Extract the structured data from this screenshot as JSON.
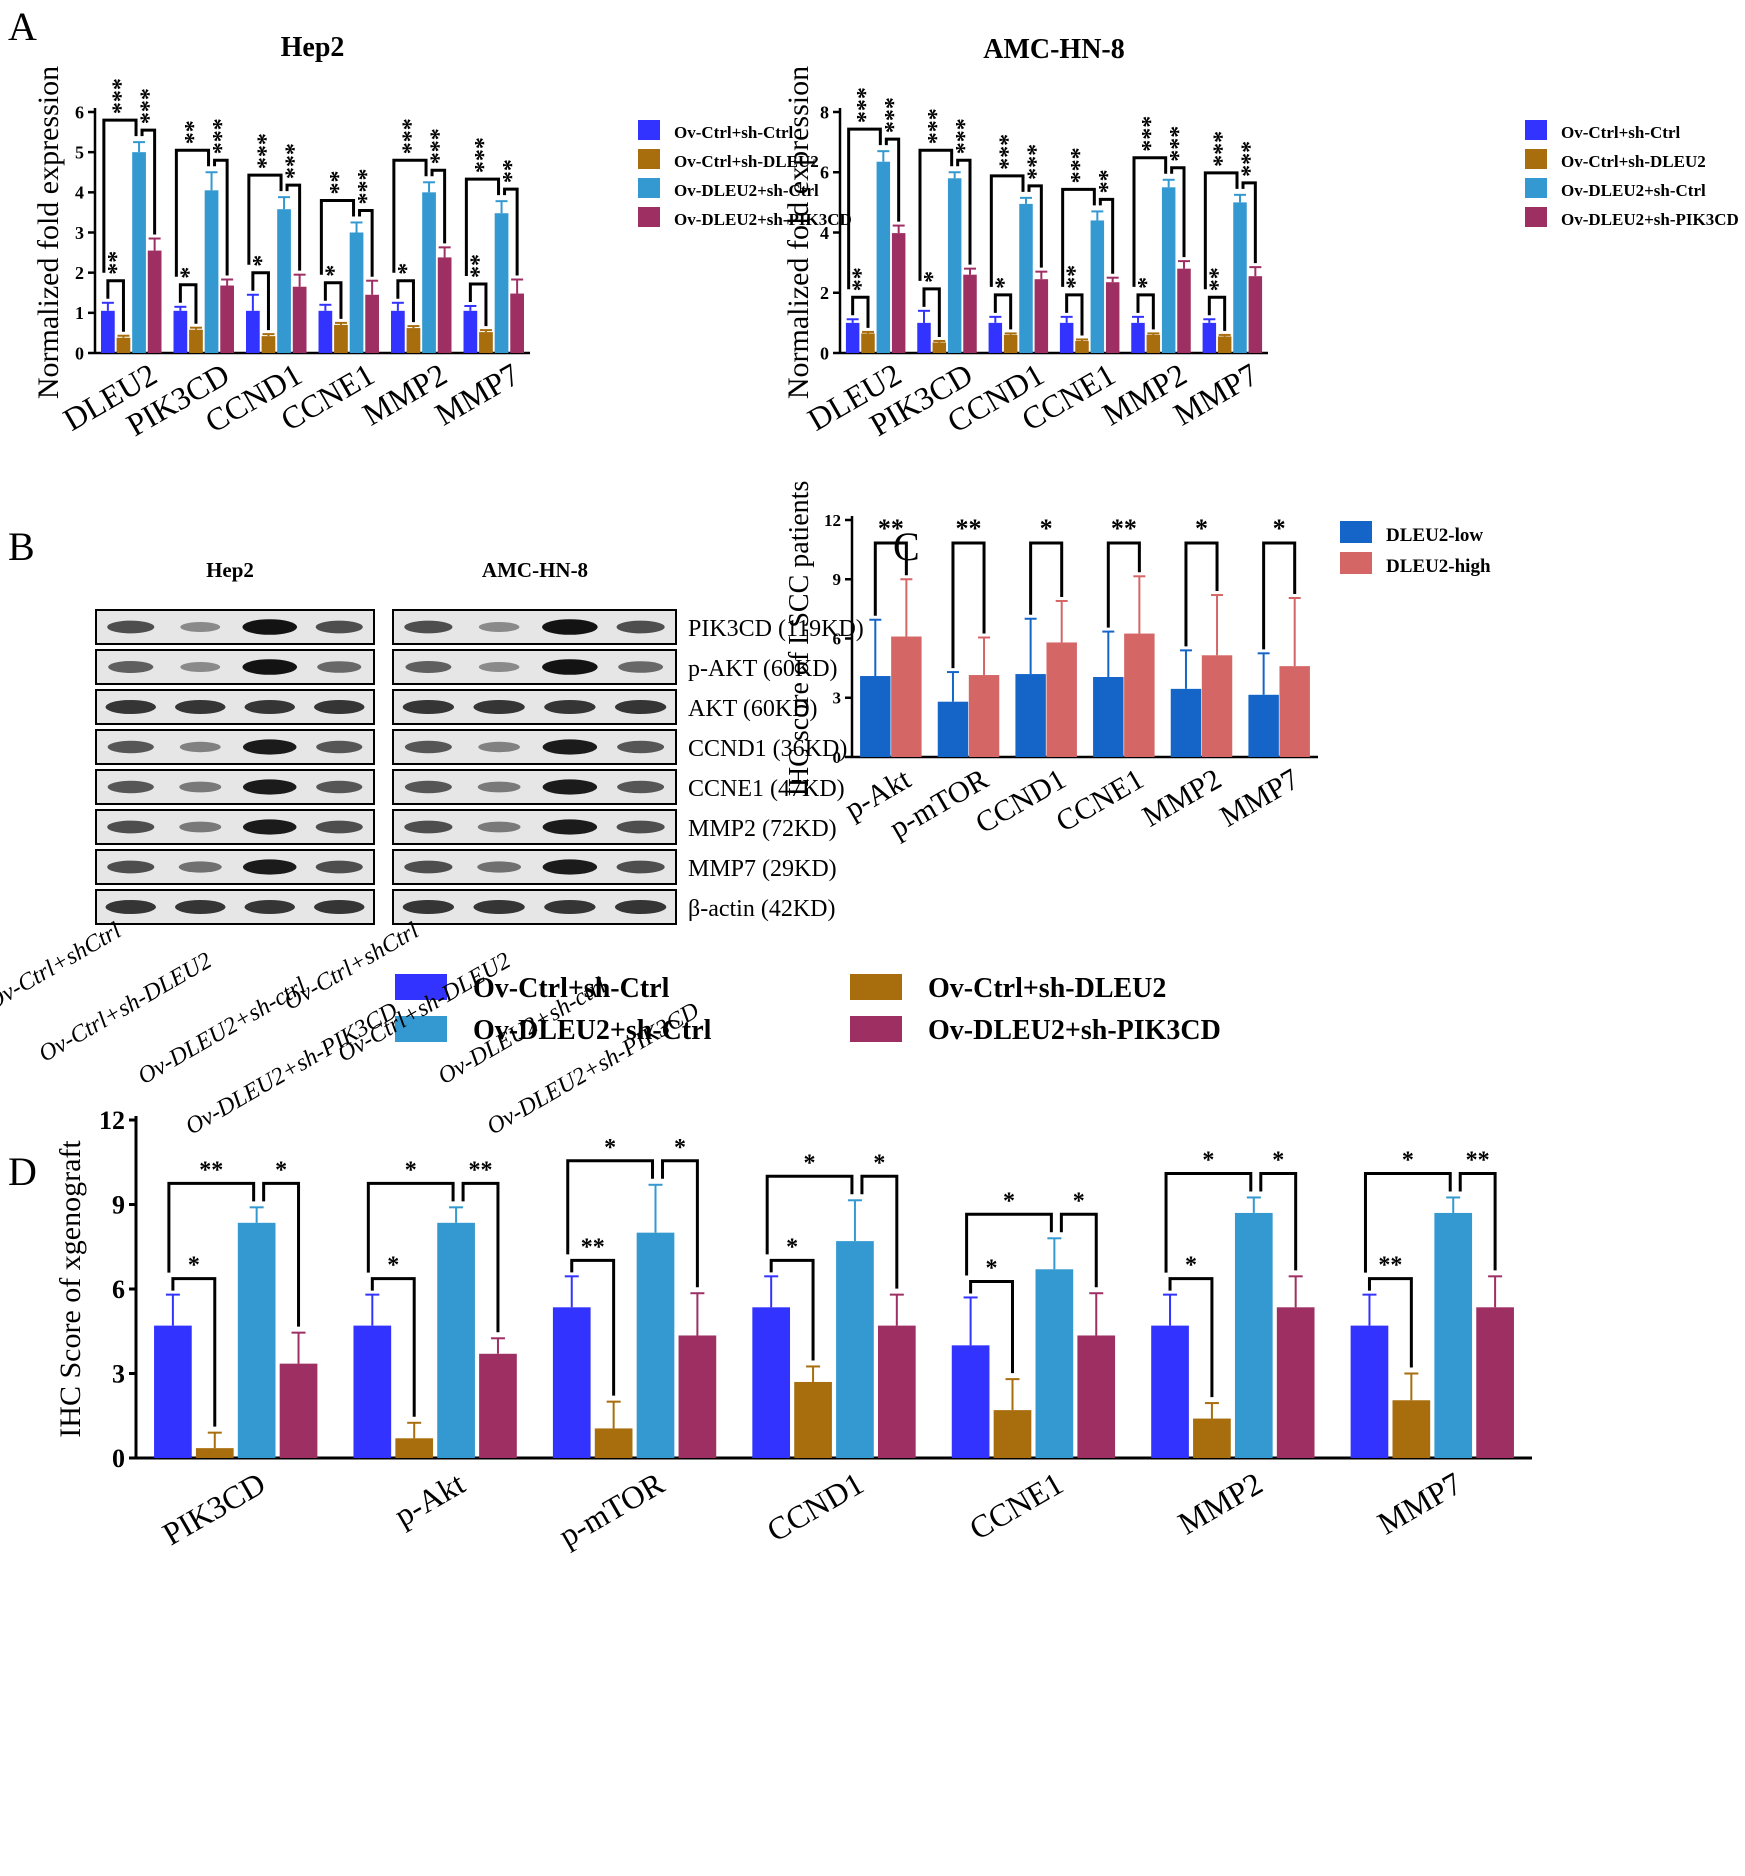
{
  "panel_labels": [
    "A",
    "B",
    "C",
    "D"
  ],
  "colors": {
    "ctrl": "#3333ff",
    "dleu2sh": "#a86d0d",
    "dleu2ov": "#3399d0",
    "pik3cd": "#9e2f63",
    "low": "#1565c8",
    "high": "#d46666",
    "axis": "#000000"
  },
  "chart_data": [
    {
      "id": "A1",
      "type": "bar",
      "title": "Hep2",
      "ylabel": "Normalized fold expression",
      "xlabel": "",
      "ylim": [
        0,
        6
      ],
      "yticks": [
        "0",
        "1",
        "2",
        "3",
        "4",
        "5",
        "6"
      ],
      "categories": [
        "DLEU2",
        "PIK3CD",
        "CCND1",
        "CCNE1",
        "MMP2",
        "MMP7"
      ],
      "legend": "right",
      "series": [
        {
          "name": "Ov-Ctrl+sh-Ctrl",
          "color": "#3333ff",
          "values": [
            1.05,
            1.05,
            1.05,
            1.05,
            1.05,
            1.05
          ],
          "errors": [
            0.2,
            0.1,
            0.4,
            0.15,
            0.2,
            0.12
          ]
        },
        {
          "name": "Ov-Ctrl+sh-DLEU2",
          "color": "#a86d0d",
          "values": [
            0.38,
            0.58,
            0.42,
            0.7,
            0.62,
            0.52
          ],
          "errors": [
            0.05,
            0.05,
            0.05,
            0.05,
            0.05,
            0.05
          ]
        },
        {
          "name": "Ov-DLEU2+sh-Ctrl",
          "color": "#3399d0",
          "values": [
            5.0,
            4.05,
            3.58,
            3.0,
            4.0,
            3.48
          ],
          "errors": [
            0.25,
            0.45,
            0.3,
            0.25,
            0.25,
            0.3
          ]
        },
        {
          "name": "Ov-DLEU2+sh-PIK3CD",
          "color": "#9e2f63",
          "values": [
            2.55,
            1.68,
            1.65,
            1.45,
            2.38,
            1.48
          ],
          "errors": [
            0.3,
            0.15,
            0.3,
            0.35,
            0.25,
            0.35
          ]
        }
      ],
      "brackets": [
        {
          "lo": [
            "**",
            "*",
            "*",
            "*",
            "*",
            "**"
          ],
          "mid": [
            "***",
            "**",
            "***",
            "**",
            "***",
            "***"
          ],
          "right": [
            "***",
            "***",
            "***",
            "***",
            "***",
            "**"
          ]
        }
      ]
    },
    {
      "id": "A2",
      "type": "bar",
      "title": "AMC-HN-8",
      "ylabel": "Normalized fold expression",
      "xlabel": "",
      "ylim": [
        0,
        8
      ],
      "yticks": [
        "0",
        "2",
        "4",
        "6",
        "8"
      ],
      "categories": [
        "DLEU2",
        "PIK3CD",
        "CCND1",
        "CCNE1",
        "MMP2",
        "MMP7"
      ],
      "legend": "right",
      "series": [
        {
          "name": "Ov-Ctrl+sh-Ctrl",
          "color": "#3333ff",
          "values": [
            1.0,
            1.0,
            1.0,
            1.0,
            1.0,
            1.0
          ],
          "errors": [
            0.12,
            0.4,
            0.2,
            0.2,
            0.2,
            0.12
          ]
        },
        {
          "name": "Ov-Ctrl+sh-DLEU2",
          "color": "#a86d0d",
          "values": [
            0.65,
            0.35,
            0.6,
            0.4,
            0.6,
            0.55
          ],
          "errors": [
            0.05,
            0.05,
            0.05,
            0.05,
            0.05,
            0.05
          ]
        },
        {
          "name": "Ov-DLEU2+sh-Ctrl",
          "color": "#3399d0",
          "values": [
            6.35,
            5.8,
            4.95,
            4.4,
            5.5,
            5.0
          ],
          "errors": [
            0.35,
            0.2,
            0.2,
            0.3,
            0.25,
            0.25
          ]
        },
        {
          "name": "Ov-DLEU2+sh-PIK3CD",
          "color": "#9e2f63",
          "values": [
            3.98,
            2.6,
            2.45,
            2.35,
            2.8,
            2.55
          ],
          "errors": [
            0.25,
            0.2,
            0.25,
            0.15,
            0.25,
            0.3
          ]
        }
      ],
      "brackets": [
        {
          "lo": [
            "**",
            "*",
            "*",
            "**",
            "*",
            "**"
          ],
          "mid": [
            "***",
            "***",
            "***",
            "***",
            "***",
            "***"
          ],
          "right": [
            "***",
            "***",
            "***",
            "**",
            "***",
            "***"
          ]
        }
      ]
    },
    {
      "id": "C",
      "type": "bar",
      "title": "",
      "ylabel": "IHC score of LSCC patients",
      "xlabel": "",
      "ylim": [
        0,
        12
      ],
      "yticks": [
        "0",
        "3",
        "6",
        "9",
        "12"
      ],
      "categories": [
        "p-Akt",
        "p-mTOR",
        "CCND1",
        "CCNE1",
        "MMP2",
        "MMP7"
      ],
      "legend": "top-right",
      "series": [
        {
          "name": "DLEU2-low",
          "color": "#1565c8",
          "values": [
            4.1,
            2.8,
            4.2,
            4.05,
            3.45,
            3.15
          ],
          "errors": [
            2.85,
            1.5,
            2.8,
            2.3,
            1.95,
            2.1
          ]
        },
        {
          "name": "DLEU2-high",
          "color": "#d46666",
          "values": [
            6.1,
            4.15,
            5.8,
            6.25,
            5.15,
            4.6
          ],
          "errors": [
            2.9,
            1.9,
            2.1,
            2.9,
            3.05,
            3.45
          ]
        }
      ],
      "sig": [
        "**",
        "**",
        "*",
        "**",
        "*",
        "*"
      ]
    },
    {
      "id": "D",
      "type": "bar",
      "title": "",
      "ylabel": "IHC Score of xgenograft",
      "xlabel": "",
      "ylim": [
        0,
        12
      ],
      "yticks": [
        "0",
        "3",
        "6",
        "9",
        "12"
      ],
      "categories": [
        "PIK3CD",
        "p-Akt",
        "p-mTOR",
        "CCND1",
        "CCNE1",
        "MMP2",
        "MMP7"
      ],
      "legend": "top",
      "series": [
        {
          "name": "Ov-Ctrl+sh-Ctrl",
          "color": "#3333ff",
          "values": [
            4.7,
            4.7,
            5.35,
            5.35,
            4.0,
            4.7,
            4.7
          ],
          "errors": [
            1.1,
            1.1,
            1.1,
            1.1,
            1.7,
            1.1,
            1.1
          ]
        },
        {
          "name": "Ov-Ctrl+sh-DLEU2",
          "color": "#a86d0d",
          "values": [
            0.35,
            0.7,
            1.05,
            2.7,
            1.7,
            1.4,
            2.05
          ],
          "errors": [
            0.55,
            0.55,
            0.95,
            0.55,
            1.1,
            0.55,
            0.95
          ]
        },
        {
          "name": "Ov-DLEU2+sh-Ctrl",
          "color": "#3399d0",
          "values": [
            8.35,
            8.35,
            8.0,
            7.7,
            6.7,
            8.7,
            8.7
          ],
          "errors": [
            0.55,
            0.55,
            1.7,
            1.45,
            1.1,
            0.55,
            0.55
          ]
        },
        {
          "name": "Ov-DLEU2+sh-PIK3CD",
          "color": "#9e2f63",
          "values": [
            3.35,
            3.7,
            4.35,
            4.7,
            4.35,
            5.35,
            5.35
          ],
          "errors": [
            1.1,
            0.55,
            1.5,
            1.1,
            1.5,
            1.1,
            1.1
          ]
        }
      ],
      "brackets": [
        {
          "lo": [
            "*",
            "*",
            "**",
            "*",
            "*",
            "*",
            "**"
          ],
          "mid": [
            "**",
            "*",
            "*",
            "*",
            "*",
            "*",
            "*"
          ],
          "right": [
            "*",
            "**",
            "*",
            "*",
            "*",
            "*",
            "**"
          ]
        }
      ]
    }
  ],
  "western_blot": {
    "cell_lines": [
      "Hep2",
      "AMC-HN-8"
    ],
    "proteins": [
      "PIK3CD (119KD)",
      "p-AKT (60KD)",
      "AKT (60KD)",
      "CCND1 (36KD)",
      "CCNE1 (47KD)",
      "MMP2 (72KD)",
      "MMP7 (29KD)",
      "β-actin (42KD)"
    ],
    "lanes": [
      "Ov-Ctrl+shCtrl",
      "Ov-Ctrl+sh-DLEU2",
      "Ov-DLEU2+sh-ctrl",
      "Ov-DLEU2+sh-PIK3CD"
    ],
    "intensity": [
      [
        0.6,
        0.25,
        0.95,
        0.6
      ],
      [
        0.5,
        0.25,
        0.95,
        0.45
      ],
      [
        0.75,
        0.75,
        0.75,
        0.75
      ],
      [
        0.55,
        0.3,
        0.9,
        0.55
      ],
      [
        0.55,
        0.35,
        0.9,
        0.55
      ],
      [
        0.6,
        0.35,
        0.9,
        0.6
      ],
      [
        0.6,
        0.4,
        0.9,
        0.6
      ],
      [
        0.75,
        0.75,
        0.75,
        0.75
      ]
    ]
  },
  "panel_d_legend": [
    "Ov-Ctrl+sh-Ctrl",
    "Ov-Ctrl+sh-DLEU2",
    "Ov-DLEU2+sh-Ctrl",
    "Ov-DLEU2+sh-PIK3CD"
  ]
}
